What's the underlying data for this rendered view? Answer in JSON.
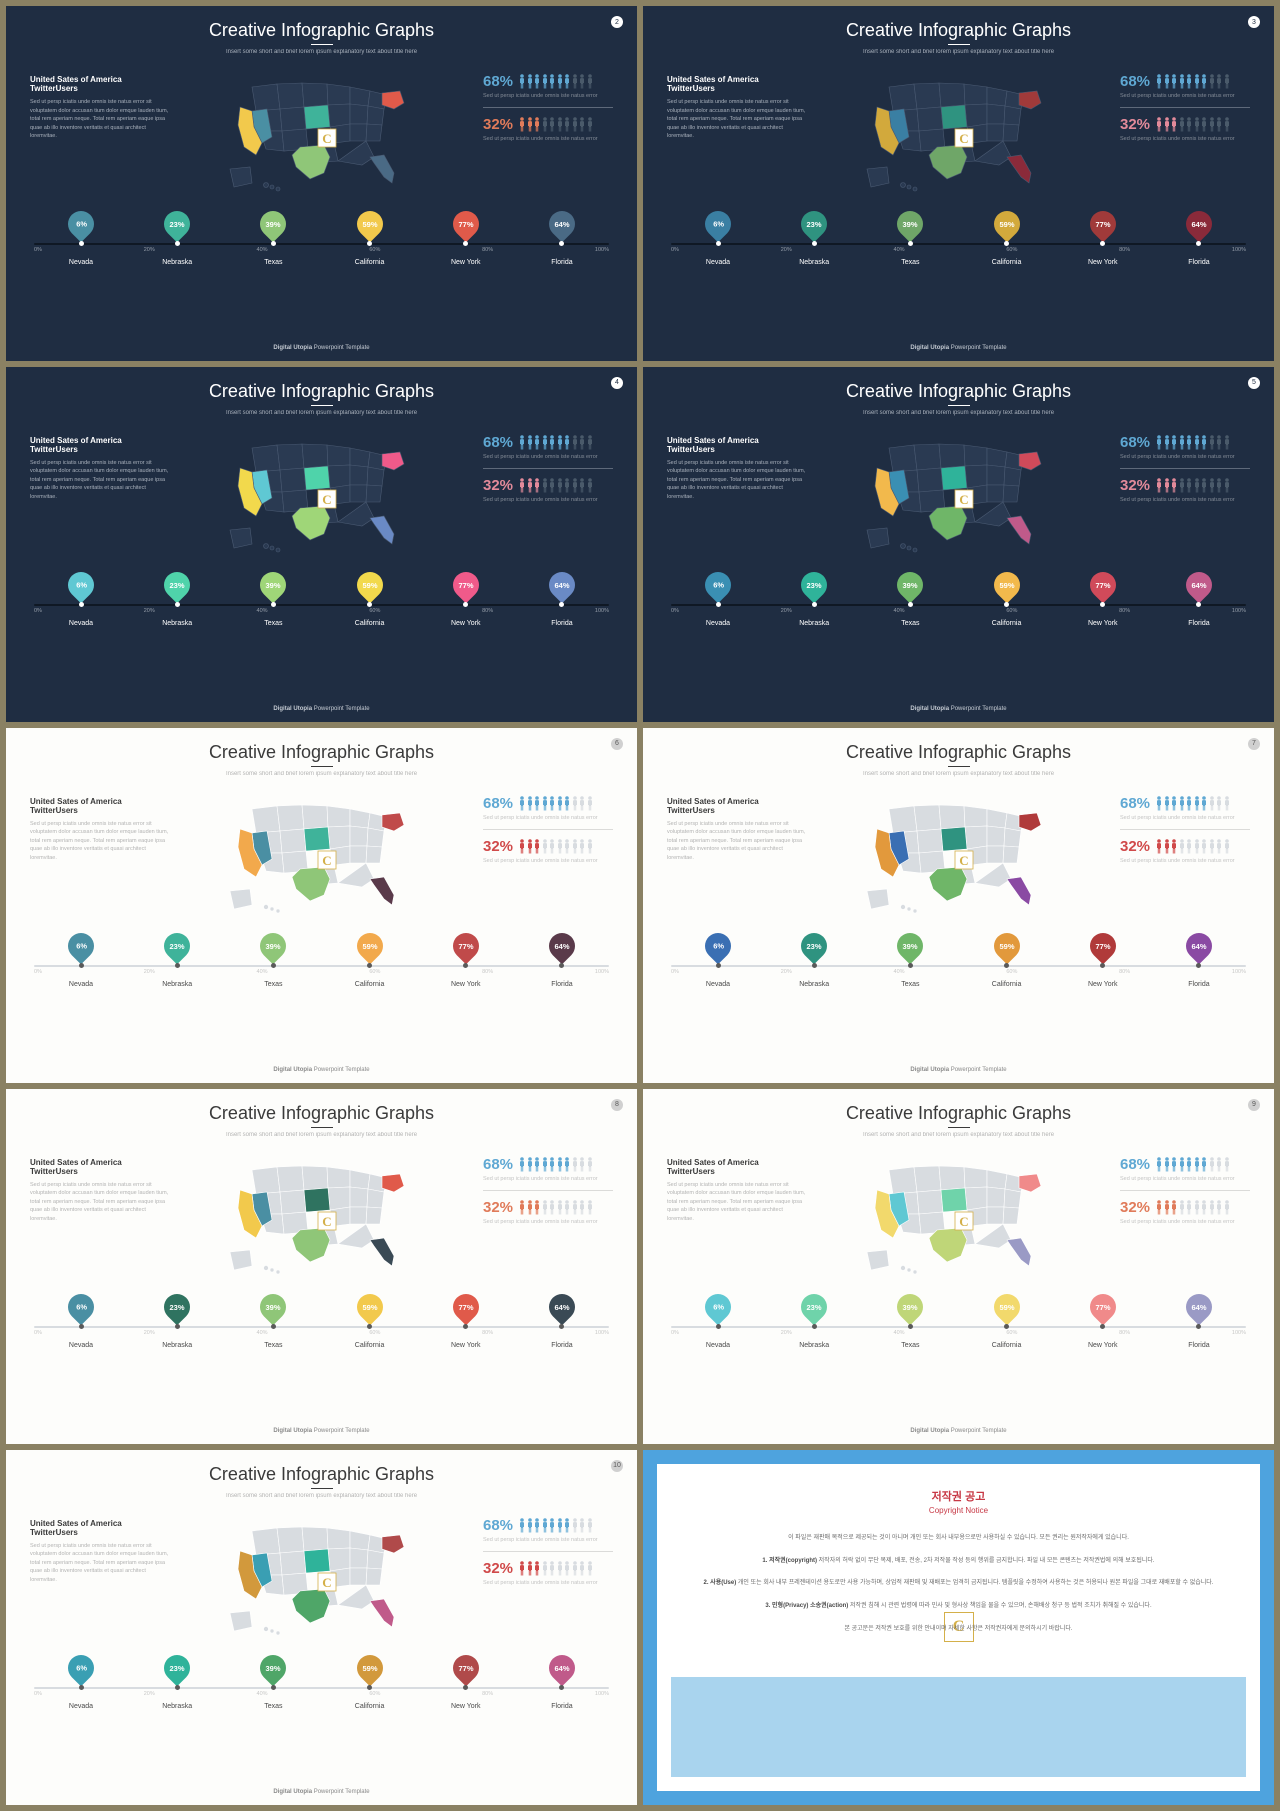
{
  "page_bg": "#8a8163",
  "slide_common": {
    "title": "Creative Infographic Graphs",
    "subtitle": "Insert some short and brief lorem ipsum explanatory text about title here",
    "left_heading": "United Sates of America TwitterUsers",
    "left_text": "Sed ut persp iciatis unde omnis iste natus error sit voluptatem dolor accusan tium dolor emque lauden tium, total rem aperiam neque. Total rem aperiam eaque ipsa quae ab illo inventore veritatis et quasi architect loremvitae.",
    "stat1_pct": "68%",
    "stat1_desc": "Sed ut persp iciatis unde omnis iste natus error",
    "stat2_pct": "32%",
    "stat2_desc": "Sed ut persp iciatis unde omnis iste natus error",
    "footer_bold": "Digital Utopia",
    "footer_rest": " Powerpoint Template",
    "ticks": [
      "0%",
      "20%",
      "40%",
      "60%",
      "80%",
      "100%"
    ],
    "pin_values": [
      "6%",
      "23%",
      "39%",
      "59%",
      "77%",
      "64%"
    ],
    "pin_labels": [
      "Nevada",
      "Nebraska",
      "Texas",
      "California",
      "New York",
      "Florida"
    ]
  },
  "themes": {
    "dark": {
      "bg": "#1f2d42",
      "title_color": "#ffffff",
      "text_color": "#d4dae2",
      "underline": "#ffffff",
      "map_base": "#2a3a52",
      "map_stroke": "#4a5a72",
      "timeline_bg": "#0f1824",
      "tick_color": "#c4cad2",
      "label_color": "#ffffff",
      "footer_color": "#c4cad2",
      "slide_num_bg": "#ffffff",
      "slide_num_color": "#1f2d42",
      "pin_dot": "#ffffff",
      "desc_color": "#a4aab2",
      "person_off": "#4a5a6a"
    },
    "light": {
      "bg": "#fdfdfb",
      "title_color": "#3a3a3a",
      "text_color": "#9a9a9a",
      "underline": "#3a3a3a",
      "map_base": "#d8dce0",
      "map_stroke": "#ffffff",
      "timeline_bg": "#d8dce0",
      "tick_color": "#b0b0b0",
      "label_color": "#4a4a4a",
      "footer_color": "#8a8a8a",
      "slide_num_bg": "#d0d0d0",
      "slide_num_color": "#5a5a5a",
      "pin_dot": "#5a5a5a",
      "desc_color": "#b0b0b0",
      "person_off": "#d8dce0"
    }
  },
  "slides": [
    {
      "num": "2",
      "theme": "dark",
      "stat1_color": "#5fa8d3",
      "stat2_color": "#e07b5a",
      "pins": [
        "#4a8fa3",
        "#3fb39a",
        "#8fc678",
        "#f2c94c",
        "#e05a4a",
        "#4a6a85"
      ],
      "map_highlights": {
        "CA": "#f2c94c",
        "NV": "#4a8fa3",
        "NE": "#3fb39a",
        "TX": "#8fc678",
        "NY": "#e05a4a",
        "FL": "#4a6a85"
      }
    },
    {
      "num": "3",
      "theme": "dark",
      "stat1_color": "#5fa8d3",
      "stat2_color": "#e28a9a",
      "pins": [
        "#3a7fa3",
        "#2f9380",
        "#6fa668",
        "#d2a93c",
        "#a03a3a",
        "#8a2a3a"
      ],
      "map_highlights": {
        "CA": "#d2a93c",
        "NV": "#3a7fa3",
        "NE": "#2f9380",
        "TX": "#6fa668",
        "NY": "#a03a3a",
        "FL": "#8a2a3a"
      }
    },
    {
      "num": "4",
      "theme": "dark",
      "stat1_color": "#5fa8d3",
      "stat2_color": "#e28a9a",
      "pins": [
        "#5fc8d3",
        "#4fd3aa",
        "#9fd678",
        "#f2d94c",
        "#f05a8a",
        "#6a8ac5"
      ],
      "map_highlights": {
        "CA": "#f2d94c",
        "NV": "#5fc8d3",
        "NE": "#4fd3aa",
        "TX": "#9fd678",
        "NY": "#f05a8a",
        "FL": "#6a8ac5"
      }
    },
    {
      "num": "5",
      "theme": "dark",
      "stat1_color": "#5fa8d3",
      "stat2_color": "#e28a9a",
      "pins": [
        "#3a8fb3",
        "#2fb39a",
        "#6fb668",
        "#f2b94c",
        "#d04a5a",
        "#c05a8a"
      ],
      "map_highlights": {
        "CA": "#f2b94c",
        "NV": "#3a8fb3",
        "NE": "#2fb39a",
        "TX": "#6fb668",
        "NY": "#d04a5a",
        "FL": "#c05a8a"
      }
    },
    {
      "num": "6",
      "theme": "light",
      "stat1_color": "#5fa8d3",
      "stat2_color": "#d04a4a",
      "pins": [
        "#4a8fa3",
        "#3fb39a",
        "#8fc678",
        "#f2a94c",
        "#c04a4a",
        "#5a3a4a"
      ],
      "map_highlights": {
        "CA": "#f2a94c",
        "NV": "#4a8fa3",
        "NE": "#3fb39a",
        "TX": "#8fc678",
        "NY": "#c04a4a",
        "FL": "#5a3a4a"
      }
    },
    {
      "num": "7",
      "theme": "light",
      "stat1_color": "#5fa8d3",
      "stat2_color": "#d04a4a",
      "pins": [
        "#3a6fb3",
        "#2f9380",
        "#6fb668",
        "#e2993c",
        "#b03a3a",
        "#8a4aa3"
      ],
      "map_highlights": {
        "CA": "#e2993c",
        "NV": "#3a6fb3",
        "NE": "#2f9380",
        "TX": "#6fb668",
        "NY": "#b03a3a",
        "FL": "#8a4aa3"
      }
    },
    {
      "num": "8",
      "theme": "light",
      "stat1_color": "#5fa8d3",
      "stat2_color": "#e07b5a",
      "pins": [
        "#4a8fa3",
        "#2f7360",
        "#8fc678",
        "#f2c94c",
        "#e05a4a",
        "#3a4a55"
      ],
      "map_highlights": {
        "CA": "#f2c94c",
        "NV": "#4a8fa3",
        "NE": "#2f7360",
        "TX": "#8fc678",
        "NY": "#e05a4a",
        "FL": "#3a4a55"
      }
    },
    {
      "num": "9",
      "theme": "light",
      "stat1_color": "#5fa8d3",
      "stat2_color": "#e07b5a",
      "pins": [
        "#5fc8d3",
        "#6fd3aa",
        "#bfd678",
        "#f2d96c",
        "#f08a8a",
        "#9a9ac5"
      ],
      "map_highlights": {
        "CA": "#f2d96c",
        "NV": "#5fc8d3",
        "NE": "#6fd3aa",
        "TX": "#bfd678",
        "NY": "#f08a8a",
        "FL": "#9a9ac5"
      }
    },
    {
      "num": "10",
      "theme": "light",
      "stat1_color": "#5fa8d3",
      "stat2_color": "#d04a4a",
      "pins": [
        "#3a9fb3",
        "#2fb39a",
        "#4fa668",
        "#d2993c",
        "#b04a4a",
        "#c05a8a"
      ],
      "map_highlights": {
        "CA": "#d2993c",
        "NV": "#3a9fb3",
        "NE": "#2fb39a",
        "TX": "#4fa668",
        "NY": "#b04a4a",
        "FL": "#c05a8a"
      }
    }
  ],
  "copyright": {
    "border_color": "#4ea3de",
    "lower_bg": "#a9d4ee",
    "title_ko": "저작권 공고",
    "title_en": "Copyright Notice",
    "para1": "이 파일은 재판매 목적으로 제공되는 것이 아니며 개인 또는 회사 내부용으로만 사용하실 수 있습니다. 모든 권리는 원저작자에게 있습니다.",
    "para2_head": "1. 저작권(copyright)",
    "para2": "저작자의 허락 없이 무단 복제, 배포, 전송, 2차 저작물 작성 등의 행위를 금지합니다. 파일 내 모든 콘텐츠는 저작권법에 의해 보호됩니다.",
    "para3_head": "2. 사용(Use)",
    "para3": "개인 또는 회사 내부 프레젠테이션 용도로만 사용 가능하며, 상업적 재판매 및 재배포는 엄격히 금지됩니다. 템플릿을 수정하여 사용하는 것은 허용되나 원본 파일을 그대로 재배포할 수 없습니다.",
    "para4_head": "3. 민형(Privacy) 소송권(action)",
    "para4": "저작권 침해 시 관련 법령에 따라 민사 및 형사상 책임을 물을 수 있으며, 손해배상 청구 등 법적 조치가 취해질 수 있습니다.",
    "para5": "본 공고문은 저작권 보호를 위한 안내이며 자세한 사항은 저작권자에게 문의하시기 바랍니다."
  }
}
